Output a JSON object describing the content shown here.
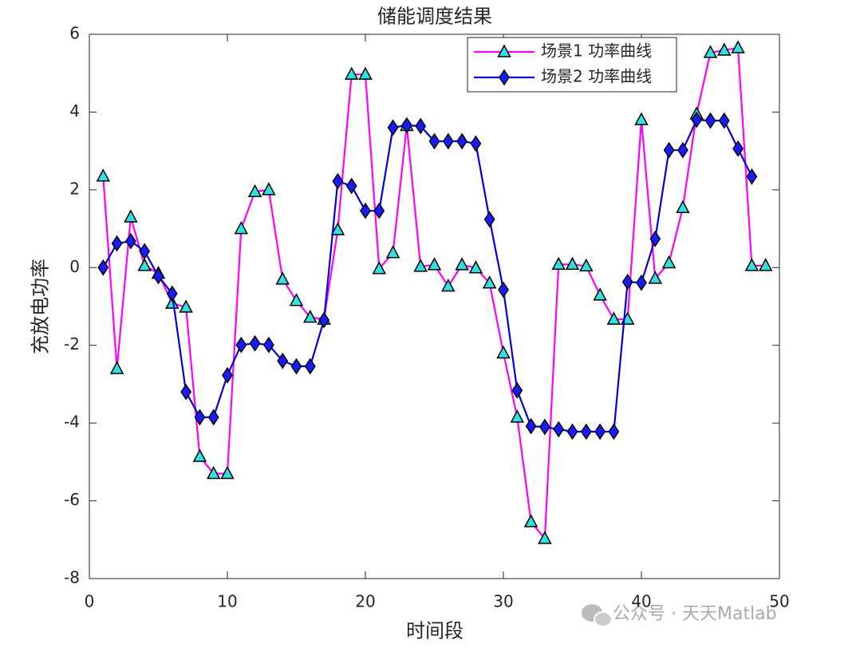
{
  "chart_data": {
    "type": "line",
    "title": "储能调度结果",
    "xlabel": "时间段",
    "ylabel": "充放电功率",
    "xlim": [
      0,
      50
    ],
    "xticks": [
      0,
      10,
      20,
      30,
      40,
      50
    ],
    "ylim": [
      -8,
      6
    ],
    "yticks": [
      -8,
      -6,
      -4,
      -2,
      0,
      2,
      4,
      6
    ],
    "grid": false,
    "legend": "northeast",
    "series": [
      {
        "name": "场景1 功率曲线",
        "color": "#ff00ff",
        "marker": "triangle",
        "marker_color": "#33e0e0",
        "x": [
          1,
          2,
          3,
          4,
          5,
          6,
          7,
          8,
          9,
          10,
          11,
          12,
          13,
          14,
          15,
          16,
          17,
          18,
          19,
          20,
          21,
          22,
          23,
          24,
          25,
          26,
          27,
          28,
          29,
          30,
          31,
          32,
          33,
          34,
          35,
          36,
          37,
          38,
          39,
          40,
          41,
          42,
          43,
          44,
          45,
          46,
          47,
          48,
          49
        ],
        "values": [
          2.35,
          -2.6,
          1.3,
          0.05,
          -0.15,
          -0.92,
          -1.02,
          -4.86,
          -5.3,
          -5.3,
          1.0,
          1.95,
          2.0,
          -0.3,
          -0.85,
          -1.28,
          -1.33,
          0.97,
          4.97,
          4.97,
          -0.03,
          0.38,
          3.65,
          0.03,
          0.07,
          -0.48,
          0.07,
          -0.01,
          -0.4,
          -2.2,
          -3.85,
          -6.54,
          -6.97,
          0.08,
          0.08,
          0.04,
          -0.71,
          -1.33,
          -1.33,
          3.8,
          -0.28,
          0.12,
          1.54,
          3.95,
          5.53,
          5.59,
          5.65,
          0.05,
          0.05
        ]
      },
      {
        "name": "场景2 功率曲线",
        "color": "#0000dd",
        "marker": "diamond",
        "marker_color": "#1a1aff",
        "x": [
          1,
          2,
          3,
          4,
          5,
          6,
          7,
          8,
          9,
          10,
          11,
          12,
          13,
          14,
          15,
          16,
          17,
          18,
          19,
          20,
          21,
          22,
          23,
          24,
          25,
          26,
          27,
          28,
          29,
          30,
          31,
          32,
          33,
          34,
          35,
          36,
          37,
          38,
          39,
          40,
          41,
          42,
          43,
          44,
          45,
          46,
          47,
          48
        ],
        "values": [
          0,
          0.62,
          0.68,
          0.42,
          -0.22,
          -0.67,
          -3.2,
          -3.85,
          -3.85,
          -2.77,
          -1.99,
          -1.95,
          -1.99,
          -2.4,
          -2.54,
          -2.54,
          -1.35,
          2.22,
          2.1,
          1.46,
          1.46,
          3.6,
          3.66,
          3.64,
          3.25,
          3.25,
          3.25,
          3.19,
          1.24,
          -0.57,
          -3.16,
          -4.08,
          -4.1,
          -4.16,
          -4.22,
          -4.22,
          -4.22,
          -4.22,
          -0.37,
          -0.39,
          0.74,
          3.02,
          3.02,
          3.8,
          3.78,
          3.78,
          3.06,
          2.34
        ]
      }
    ],
    "watermark": "公众号 · 天天Matlab"
  }
}
